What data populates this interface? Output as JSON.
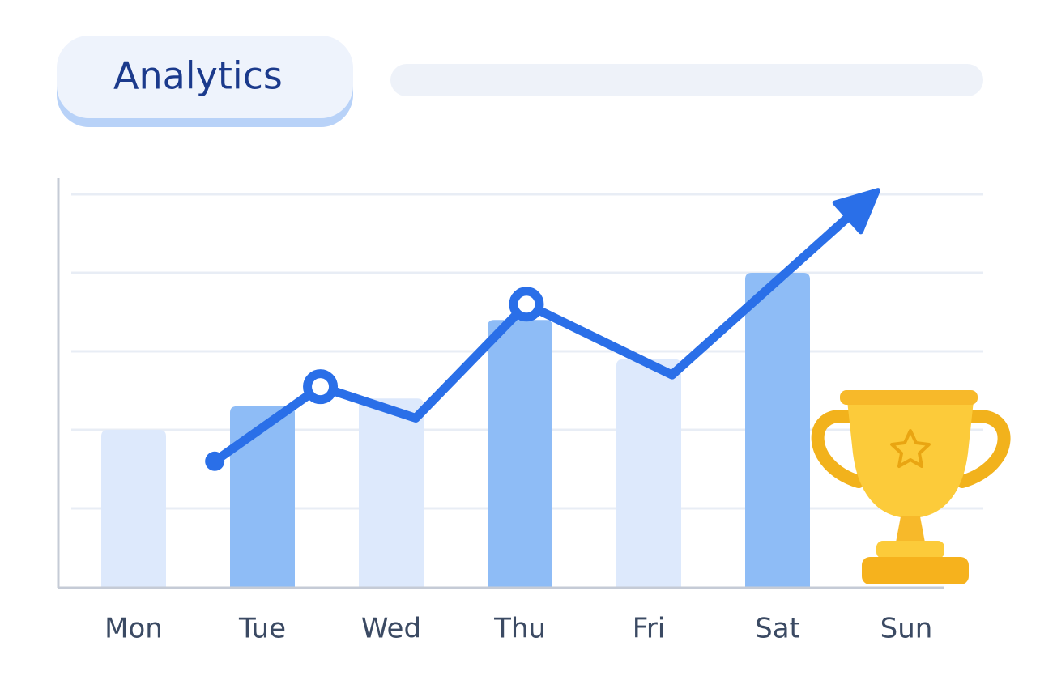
{
  "chart_data": {
    "type": "bar",
    "title": "Analytics",
    "categories": [
      "Mon",
      "Tue",
      "Wed",
      "Thu",
      "Fri",
      "Sat",
      "Sun"
    ],
    "values": [
      2.0,
      2.3,
      2.4,
      3.4,
      2.9,
      4.0,
      null
    ],
    "colors": [
      "#dde9fc",
      "#8ebcf6",
      "#dde9fc",
      "#8ebcf6",
      "#dde9fc",
      "#8ebcf6",
      "#dde9fc"
    ],
    "trend": {
      "color": "#2a6fe8",
      "x": [
        0.63,
        1.45,
        2.19,
        3.05,
        4.18,
        5.78
      ],
      "values": [
        1.6,
        2.55,
        2.15,
        3.6,
        2.7,
        5.05
      ]
    },
    "ylim": [
      0,
      5
    ],
    "yticks": [
      1,
      2,
      3,
      4,
      5
    ],
    "grid": true
  }
}
